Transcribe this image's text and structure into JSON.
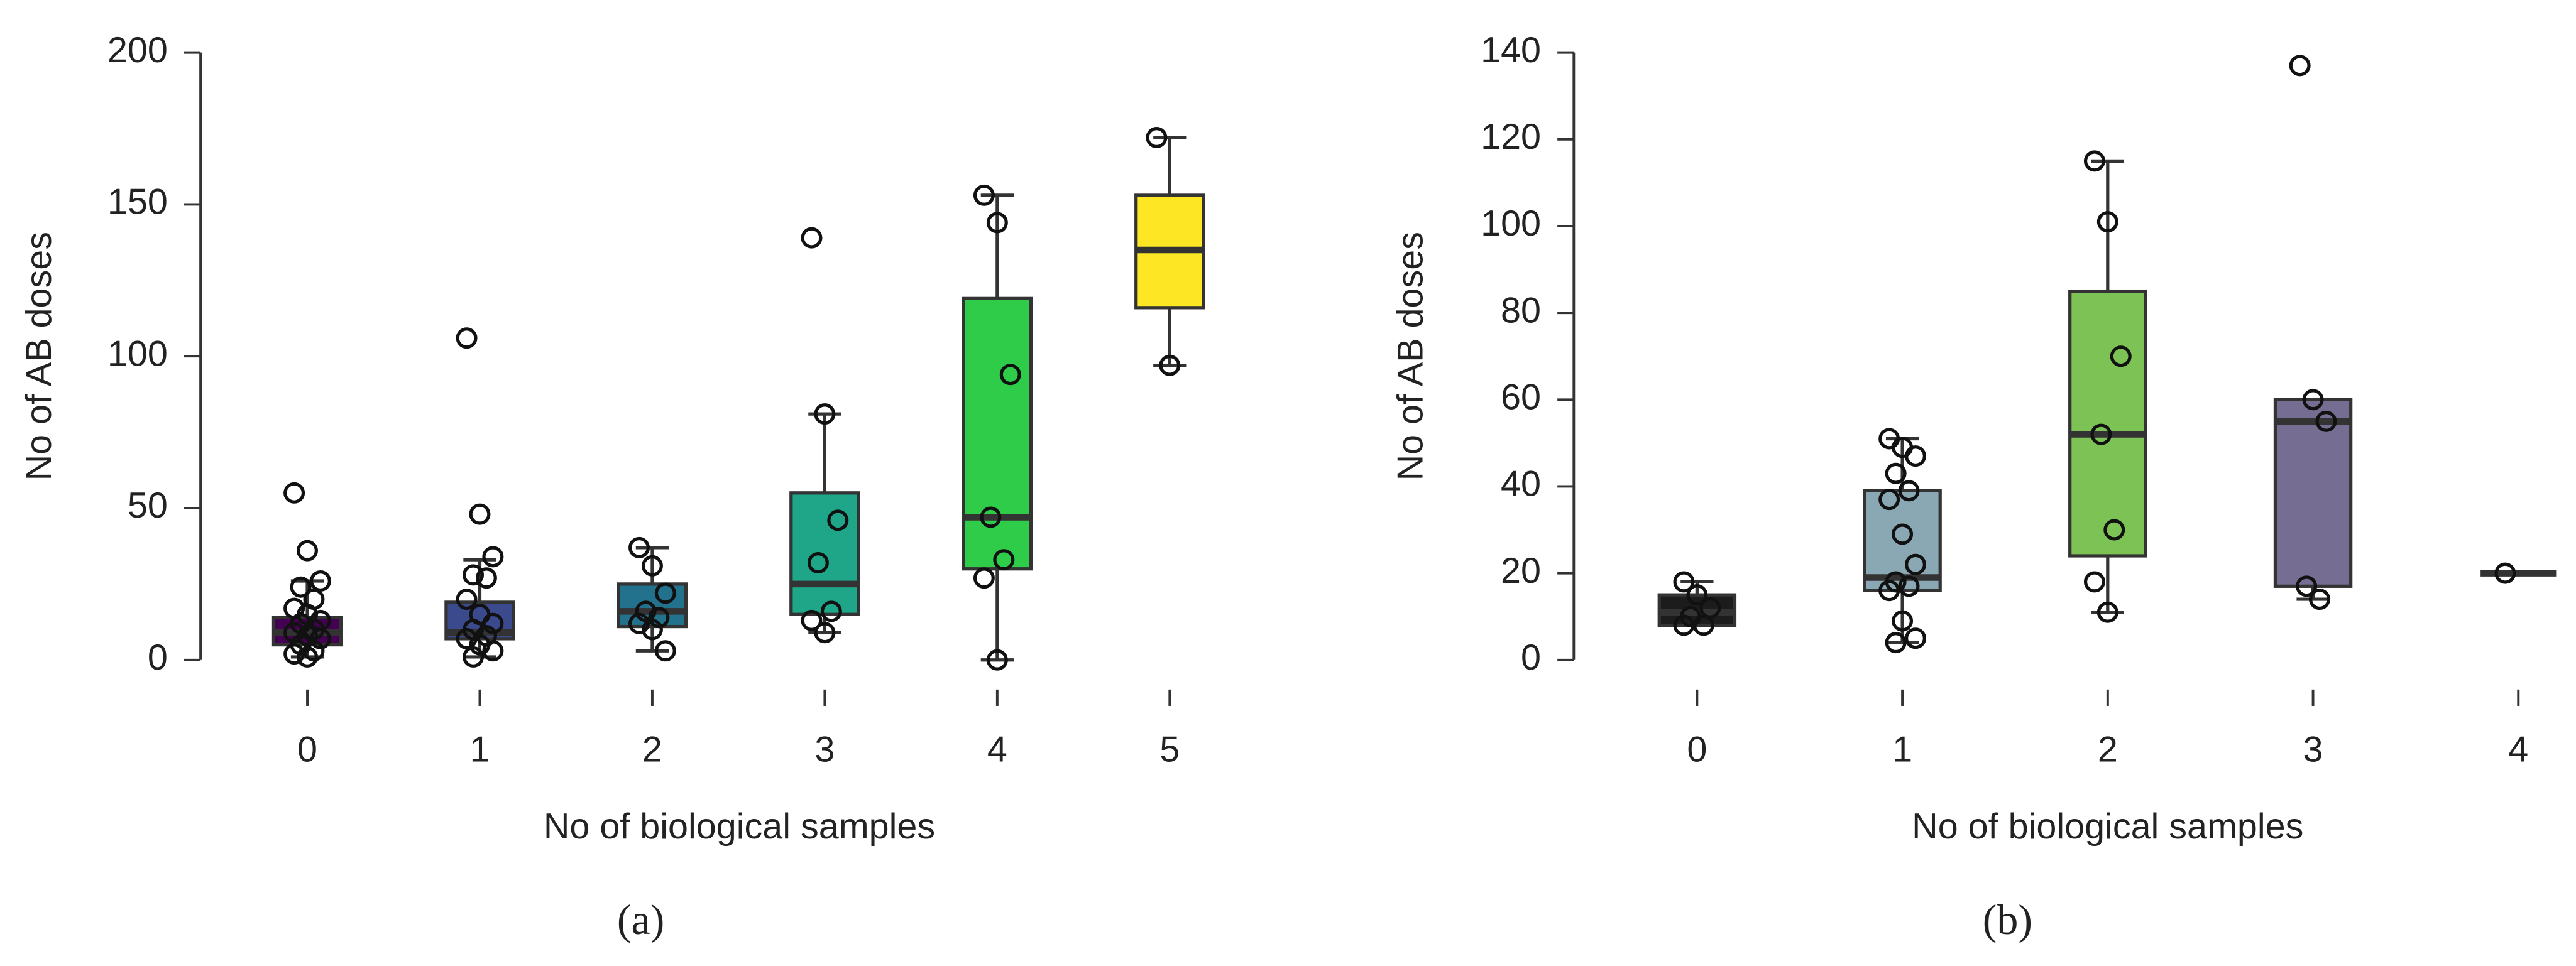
{
  "chart_data": [
    {
      "type": "box",
      "caption": "(a)",
      "ylabel": "No of AB doses",
      "xlabel": "No of biological samples",
      "categories": [
        "0",
        "1",
        "2",
        "3",
        "4",
        "5"
      ],
      "ylim": [
        0,
        200
      ],
      "yticks": [
        0,
        50,
        100,
        150,
        200
      ],
      "boxes": [
        {
          "color": "#440154",
          "whisker_low": 1,
          "q1": 5,
          "median": 9,
          "q3": 14,
          "whisker_high": 26,
          "points": [
            55,
            36,
            26,
            24,
            20,
            17,
            15,
            13,
            12,
            10,
            9,
            8,
            7,
            5,
            3,
            2,
            1
          ]
        },
        {
          "color": "#3b4a8c",
          "whisker_low": 1,
          "q1": 7,
          "median": 9,
          "q3": 19,
          "whisker_high": 33,
          "points": [
            106,
            48,
            34,
            28,
            27,
            20,
            15,
            12,
            10,
            8,
            7,
            5,
            3,
            1
          ]
        },
        {
          "color": "#22718d",
          "whisker_low": 3,
          "q1": 11,
          "median": 16,
          "q3": 25,
          "whisker_high": 37,
          "points": [
            37,
            31,
            22,
            16,
            14,
            12,
            10,
            3
          ]
        },
        {
          "color": "#1fa587",
          "whisker_low": 9,
          "q1": 15,
          "median": 25,
          "q3": 55,
          "whisker_high": 81,
          "points": [
            139,
            81,
            46,
            32,
            16,
            13,
            9
          ]
        },
        {
          "color": "#2fcc4a",
          "whisker_low": 0,
          "q1": 30,
          "median": 47,
          "q3": 119,
          "whisker_high": 153,
          "points": [
            153,
            144,
            94,
            47,
            33,
            27,
            0
          ]
        },
        {
          "color": "#fde725",
          "whisker_low": 97,
          "q1": 116,
          "median": 135,
          "q3": 153,
          "whisker_high": 172,
          "points": [
            172,
            97
          ]
        }
      ]
    },
    {
      "type": "box",
      "caption": "(b)",
      "ylabel": "No of AB doses",
      "xlabel": "No of biological samples",
      "categories": [
        "0",
        "1",
        "2",
        "3",
        "4"
      ],
      "ylim": [
        0,
        140
      ],
      "yticks": [
        0,
        20,
        40,
        60,
        80,
        100,
        120,
        140
      ],
      "boxes": [
        {
          "color": "#1c1c1c",
          "whisker_low": 8,
          "q1": 8,
          "median": 11,
          "q3": 15,
          "whisker_high": 18,
          "points": [
            18,
            15,
            12,
            10,
            8,
            8
          ]
        },
        {
          "color": "#8aa8b4",
          "whisker_low": 4,
          "q1": 16,
          "median": 19,
          "q3": 39,
          "whisker_high": 51,
          "points": [
            51,
            49,
            47,
            43,
            39,
            37,
            29,
            22,
            18,
            17,
            16,
            9,
            5,
            4
          ]
        },
        {
          "color": "#7dc254",
          "whisker_low": 11,
          "q1": 24,
          "median": 52,
          "q3": 85,
          "whisker_high": 115,
          "points": [
            115,
            101,
            70,
            52,
            30,
            18,
            11
          ]
        },
        {
          "color": "#766e92",
          "whisker_low": 14,
          "q1": 17,
          "median": 55,
          "q3": 60,
          "whisker_high": 60,
          "points": [
            137,
            60,
            55,
            17,
            14
          ]
        },
        {
          "color": "#333333",
          "whisker_low": 20,
          "q1": 20,
          "median": 20,
          "q3": 20,
          "whisker_high": 20,
          "points": [
            20
          ]
        }
      ]
    }
  ]
}
